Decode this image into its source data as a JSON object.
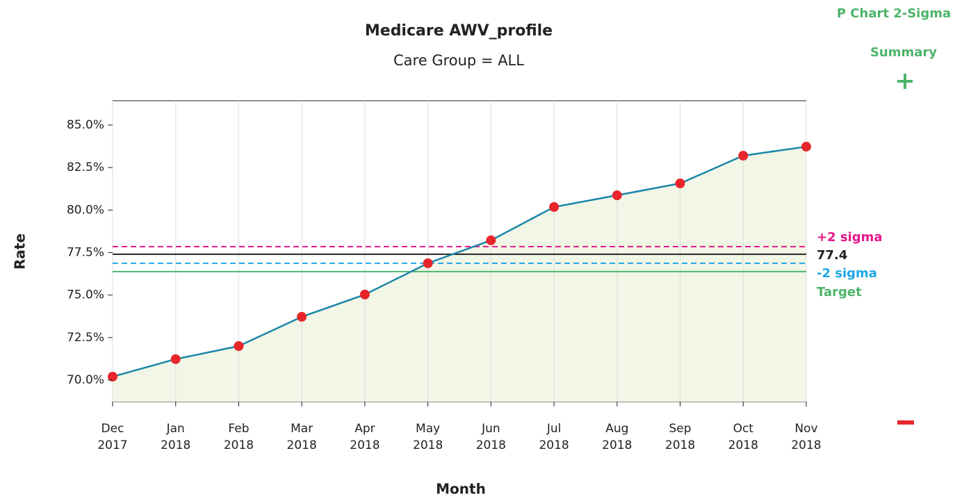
{
  "controls": {
    "chart_type": "P Chart 2-Sigma",
    "summary": "Summary"
  },
  "chart_data": {
    "type": "line",
    "title": "Medicare AWV_profile",
    "subtitle": "Care Group = ALL",
    "x_label": "Month",
    "y_label": "Rate",
    "categories": [
      [
        "Dec",
        "2017"
      ],
      [
        "Jan",
        "2018"
      ],
      [
        "Feb",
        "2018"
      ],
      [
        "Mar",
        "2018"
      ],
      [
        "Apr",
        "2018"
      ],
      [
        "May",
        "2018"
      ],
      [
        "Jun",
        "2018"
      ],
      [
        "Jul",
        "2018"
      ],
      [
        "Aug",
        "2018"
      ],
      [
        "Sep",
        "2018"
      ],
      [
        "Oct",
        "2018"
      ],
      [
        "Nov",
        "2018"
      ]
    ],
    "values": [
      70.2,
      71.23,
      72.0,
      73.72,
      75.03,
      76.87,
      78.22,
      80.18,
      80.87,
      81.57,
      83.2,
      83.73
    ],
    "line_color": "#1a86a8",
    "point_color": "#e8252b",
    "area_color": "#f1f6e6",
    "ylim": [
      68.73,
      86.43
    ],
    "yticks": [
      {
        "value": 70,
        "label": "70.0%"
      },
      {
        "value": 72.5,
        "label": "72.5%"
      },
      {
        "value": 75,
        "label": "75.0%"
      },
      {
        "value": 77.5,
        "label": "77.5%"
      },
      {
        "value": 80,
        "label": "80.0%"
      },
      {
        "value": 82.5,
        "label": "82.5%"
      },
      {
        "value": 85,
        "label": "85.0%"
      }
    ],
    "grid": true,
    "reference_lines": [
      {
        "label": "+2 sigma",
        "value": 77.85,
        "color": "#e5158a",
        "dashed": true
      },
      {
        "value": 77.4,
        "color": "#222222",
        "dashed": false
      },
      {
        "label": "-2 sigma",
        "value": 76.87,
        "color": "#1ea7e6",
        "dashed": true
      },
      {
        "label": "Target",
        "value": 76.38,
        "color": "#4db46b",
        "dashed": false
      }
    ]
  }
}
